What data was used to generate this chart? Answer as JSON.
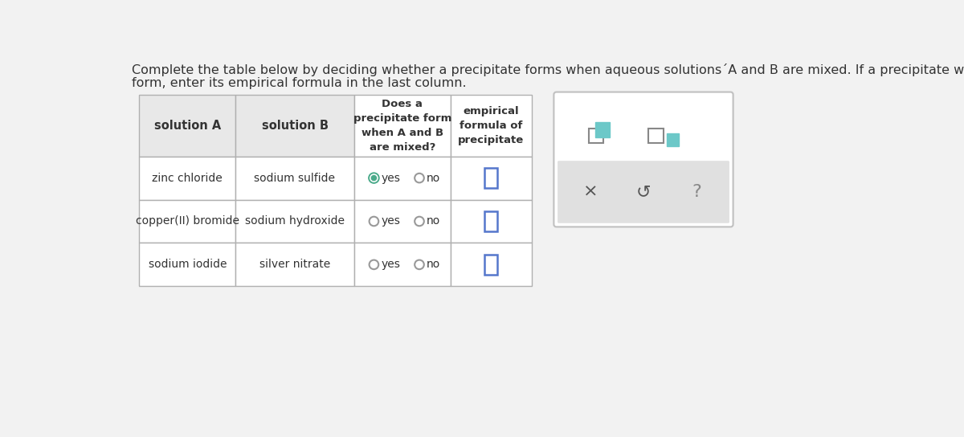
{
  "page_bg": "#f2f2f2",
  "title_line1": "Complete the table below by deciding whether a precipitate forms when aqueous solutions´A and B are mixed. If a precipitate will",
  "title_line2": "form, enter its empirical formula in the last column.",
  "col_headers": [
    "solution A",
    "solution B",
    "Does a\nprecipitate form\nwhen A and B\nare mixed?",
    "empirical\nformula of\nprecipitate"
  ],
  "row_data": [
    {
      "solA": "zinc chloride",
      "solB": "sodium sulfide",
      "yes_selected": true
    },
    {
      "solA": "copper(II) bromide",
      "solB": "sodium hydroxide",
      "yes_selected": false
    },
    {
      "solA": "sodium iodide",
      "solB": "silver nitrate",
      "yes_selected": false
    }
  ],
  "table_bg": "#ffffff",
  "header_bg": "#e8e8e8",
  "border_color": "#b0b0b0",
  "text_color": "#333333",
  "radio_teal": "#4aaa8a",
  "box_blue": "#5577cc",
  "panel_bg": "#f0f0f0",
  "panel_border": "#c0c0c0",
  "panel_btn_bg": "#e0e0e0"
}
